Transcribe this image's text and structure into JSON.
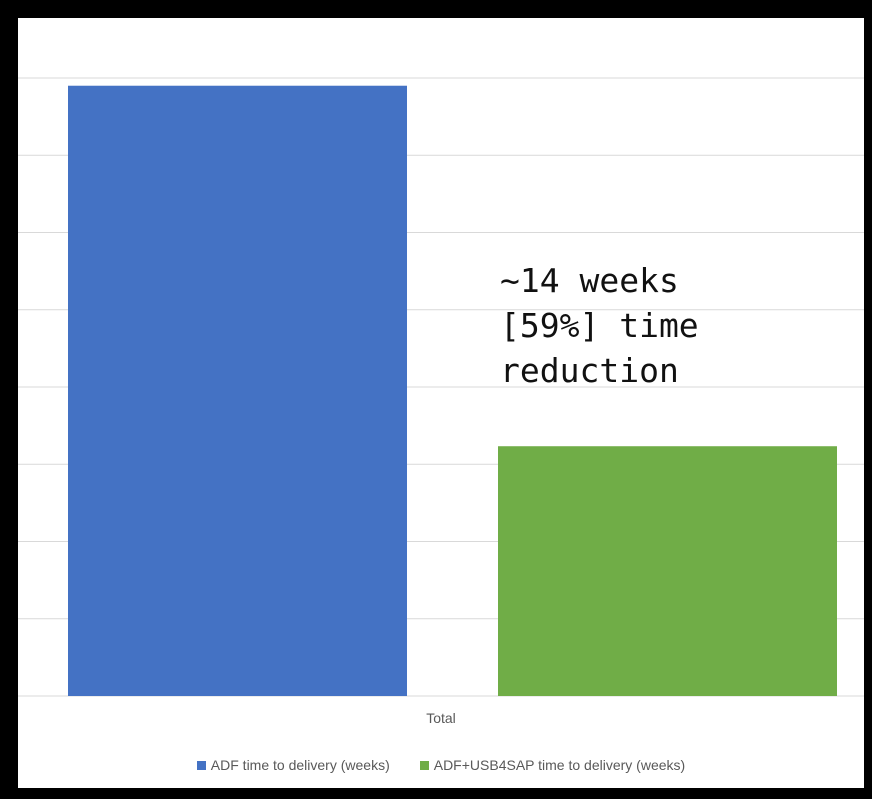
{
  "chart_data": {
    "type": "bar",
    "categories": [
      "Total"
    ],
    "series": [
      {
        "name": "ADF time to delivery (weeks)",
        "values": [
          23.7
        ],
        "color": "#4472C4"
      },
      {
        "name": "ADF+USB4SAP time to delivery (weeks)",
        "values": [
          9.7
        ],
        "color": "#70AD47"
      }
    ],
    "ylim": [
      0,
      24
    ],
    "grid": true,
    "gridline_step": 3,
    "legend_position": "bottom",
    "annotation": [
      "~14 weeks",
      "[59%] time",
      "reduction"
    ]
  }
}
